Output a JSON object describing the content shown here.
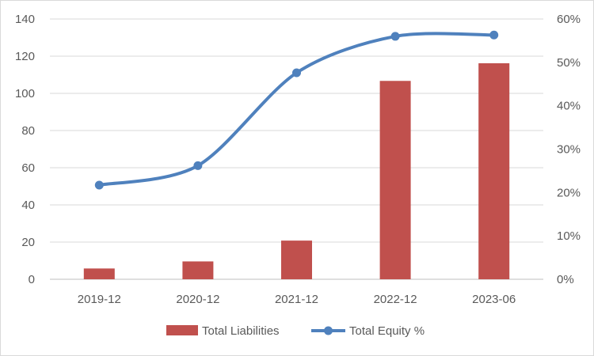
{
  "chart_data": {
    "type": "bar+line",
    "categories": [
      "2019-12",
      "2020-12",
      "2021-12",
      "2022-12",
      "2023-06"
    ],
    "series": [
      {
        "name": "Total Liabilities",
        "type": "bar",
        "axis": "left",
        "color": "#c0504d",
        "values": [
          5.8,
          9.6,
          20.8,
          106.7,
          116.2
        ]
      },
      {
        "name": "Total Equity %",
        "type": "line",
        "axis": "right",
        "color": "#4f81bd",
        "values": [
          0.217,
          0.262,
          0.476,
          0.56,
          0.563
        ]
      }
    ],
    "y_left": {
      "min": 0,
      "max": 140,
      "step": 20,
      "ticks": [
        "0",
        "20",
        "40",
        "60",
        "80",
        "100",
        "120",
        "140"
      ]
    },
    "y_right": {
      "min": 0,
      "max": 0.6,
      "step": 0.1,
      "ticks": [
        "0%",
        "10%",
        "20%",
        "30%",
        "40%",
        "50%",
        "60%"
      ]
    },
    "grid": "horizontal",
    "legend": "bottom"
  }
}
